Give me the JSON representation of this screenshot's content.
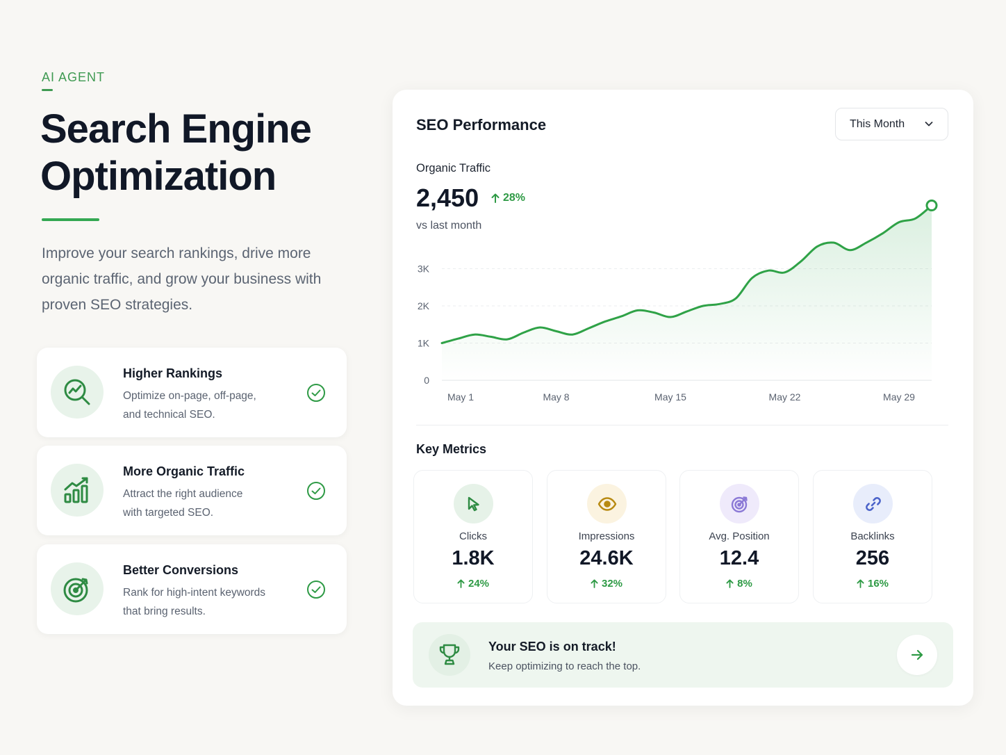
{
  "hero": {
    "eyebrow": "AI AGENT",
    "title_line1": "Search Engine",
    "title_line2": "Optimization",
    "description": "Improve your search rankings, drive more organic traffic, and grow your business with proven SEO strategies."
  },
  "features": [
    {
      "title": "Higher Rankings",
      "desc_line1": "Optimize on-page, off-page,",
      "desc_line2": "and technical SEO.",
      "icon": "search-trend-icon"
    },
    {
      "title": "More Organic Traffic",
      "desc_line1": "Attract the right audience",
      "desc_line2": "with targeted SEO.",
      "icon": "bar-chart-growth-icon"
    },
    {
      "title": "Better Conversions",
      "desc_line1": "Rank for high-intent keywords",
      "desc_line2": "that bring results.",
      "icon": "target-icon"
    }
  ],
  "card": {
    "title": "SEO Performance",
    "period": "This Month",
    "organic": {
      "label": "Organic Traffic",
      "value": "2,450",
      "delta": "28%",
      "sub": "vs last month"
    },
    "key_metrics_title": "Key Metrics",
    "kpis": [
      {
        "label": "Clicks",
        "value": "1.8K",
        "delta": "24%",
        "icon": "cursor-icon"
      },
      {
        "label": "Impressions",
        "value": "24.6K",
        "delta": "32%",
        "icon": "eye-icon"
      },
      {
        "label": "Avg. Position",
        "value": "12.4",
        "delta": "8%",
        "icon": "target-icon"
      },
      {
        "label": "Backlinks",
        "value": "256",
        "delta": "16%",
        "icon": "link-icon"
      }
    ],
    "banner": {
      "title": "Your SEO is on track!",
      "subtitle": "Keep optimizing to reach the top."
    }
  },
  "colors": {
    "accent": "#34a853",
    "background": "#f8f7f4",
    "clicks_icon_bg": "#e6f2e8",
    "impressions_icon_bg": "#fbf3e0",
    "position_icon_bg": "#efeafb",
    "backlinks_icon_bg": "#e8edfb"
  },
  "chart_data": {
    "type": "area",
    "title": "",
    "xlabel": "",
    "ylabel": "",
    "x_ticks": [
      "May 1",
      "May 8",
      "May 15",
      "May 22",
      "May 29"
    ],
    "y_ticks": [
      "0",
      "1K",
      "2K",
      "3K"
    ],
    "ylim": [
      0,
      4700
    ],
    "x": [
      1,
      2,
      3,
      4,
      5,
      6,
      7,
      8,
      9,
      10,
      11,
      12,
      13,
      14,
      15,
      16,
      17,
      18,
      19,
      20,
      21,
      22,
      23,
      24,
      25,
      26,
      27,
      28,
      29,
      30,
      31
    ],
    "values": [
      1000,
      1120,
      1230,
      1170,
      1100,
      1280,
      1420,
      1320,
      1230,
      1400,
      1580,
      1720,
      1880,
      1820,
      1700,
      1850,
      2000,
      2050,
      2200,
      2750,
      2950,
      2900,
      3200,
      3600,
      3700,
      3500,
      3700,
      3950,
      4250,
      4350,
      4700
    ]
  }
}
